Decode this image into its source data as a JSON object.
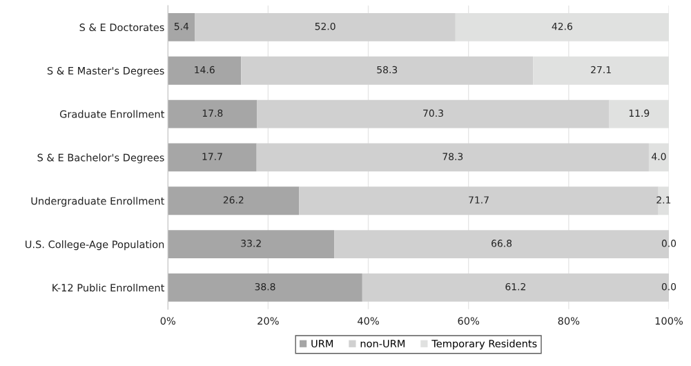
{
  "chart_data": {
    "type": "bar",
    "orientation": "horizontal",
    "stacked": true,
    "grid": "x",
    "legend": "bottom",
    "categories": [
      "S & E Doctorates",
      "S & E Master's Degrees",
      "Graduate Enrollment",
      "S & E Bachelor's Degrees",
      "Undergraduate Enrollment",
      "U.S. College-Age Population",
      "K-12 Public Enrollment"
    ],
    "series": [
      {
        "name": "URM",
        "color": "#a6a6a6",
        "values": [
          5.4,
          14.6,
          17.8,
          17.7,
          26.2,
          33.2,
          38.8
        ],
        "value_labels": [
          "5.4",
          "14.6",
          "17.8",
          "17.7",
          "26.2",
          "33.2",
          "38.8"
        ]
      },
      {
        "name": "non-URM",
        "color": "#d0d0d0",
        "values": [
          52.0,
          58.3,
          70.3,
          78.3,
          71.7,
          66.8,
          61.2
        ],
        "value_labels": [
          "52.0",
          "58.3",
          "70.3",
          "78.3",
          "71.7",
          "66.8",
          "61.2"
        ]
      },
      {
        "name": "Temporary Residents",
        "color": "#e0e1e0",
        "values": [
          42.6,
          27.1,
          11.9,
          4.0,
          2.1,
          0.0,
          0.0
        ],
        "value_labels": [
          "42.6",
          "27.1",
          "11.9",
          "4.0",
          "2.1",
          "0.0",
          "0.0"
        ]
      }
    ],
    "xlim": [
      0,
      100
    ],
    "xticks": [
      {
        "value": 0,
        "label": "0%"
      },
      {
        "value": 20,
        "label": "20%"
      },
      {
        "value": 40,
        "label": "40%"
      },
      {
        "value": 60,
        "label": "60%"
      },
      {
        "value": 80,
        "label": "80%"
      },
      {
        "value": 100,
        "label": "100%"
      }
    ]
  }
}
